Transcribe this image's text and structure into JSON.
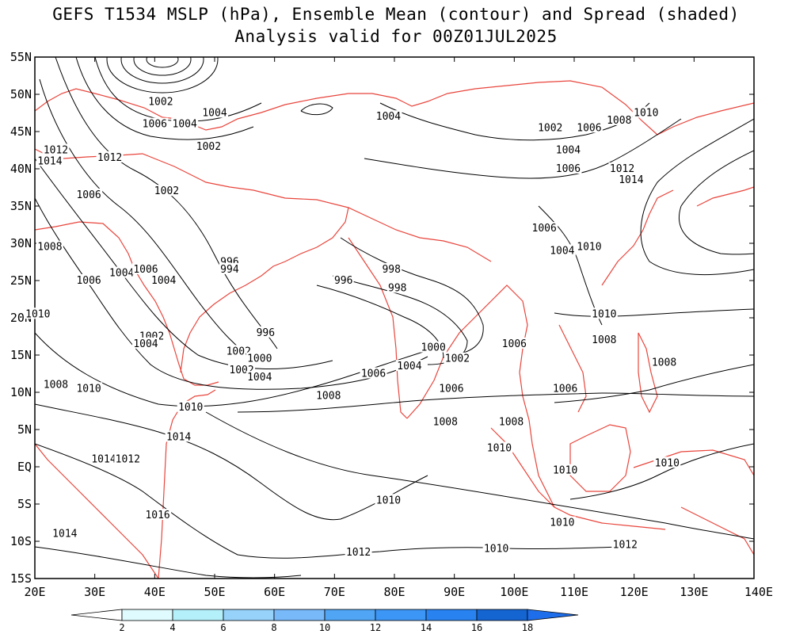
{
  "title": {
    "line1": "GEFS T1534 MSLP (hPa), Ensemble Mean (contour) and Spread (shaded)",
    "line2": "Analysis valid for 00Z01JUL2025"
  },
  "axes": {
    "lon_labels": [
      "20E",
      "30E",
      "40E",
      "50E",
      "60E",
      "70E",
      "80E",
      "90E",
      "100E",
      "110E",
      "120E",
      "130E",
      "140E"
    ],
    "lat_labels": [
      "55N",
      "50N",
      "45N",
      "40N",
      "35N",
      "30N",
      "25N",
      "20N",
      "15N",
      "10N",
      "5N",
      "EQ",
      "5S",
      "10S",
      "15S"
    ],
    "lon_range": [
      20,
      140
    ],
    "lat_range": [
      -15,
      55
    ]
  },
  "colorbar": {
    "ticks": [
      "2",
      "4",
      "6",
      "8",
      "10",
      "12",
      "14",
      "16",
      "18"
    ],
    "colors": [
      "#ffffff",
      "#e0fbfd",
      "#b4f0fa",
      "#96d2fa",
      "#78b9fa",
      "#50a5f5",
      "#3c96f5",
      "#2882f0",
      "#1464d2",
      "#1e6eeb"
    ]
  },
  "colors": {
    "coast": "#e8453c",
    "contour": "#000000"
  },
  "contour_labels": [
    {
      "text": "1002",
      "lon": 41.0,
      "lat": 49.0
    },
    {
      "text": "1006",
      "lon": 40.0,
      "lat": 46.0
    },
    {
      "text": "1004",
      "lon": 45.0,
      "lat": 46.0
    },
    {
      "text": "1004",
      "lon": 50.0,
      "lat": 47.5
    },
    {
      "text": "1002",
      "lon": 49.0,
      "lat": 43.0
    },
    {
      "text": "1012",
      "lon": 23.5,
      "lat": 42.5
    },
    {
      "text": "1014",
      "lon": 22.5,
      "lat": 41.0
    },
    {
      "text": "1012",
      "lon": 32.5,
      "lat": 41.5
    },
    {
      "text": "1006",
      "lon": 29.0,
      "lat": 36.5
    },
    {
      "text": "1002",
      "lon": 42.0,
      "lat": 37.0
    },
    {
      "text": "1008",
      "lon": 22.5,
      "lat": 29.5
    },
    {
      "text": "1004",
      "lon": 34.5,
      "lat": 26.0
    },
    {
      "text": "1006",
      "lon": 29.0,
      "lat": 25.0
    },
    {
      "text": "1006",
      "lon": 38.5,
      "lat": 26.5
    },
    {
      "text": "1004",
      "lon": 41.5,
      "lat": 25.0
    },
    {
      "text": "1010",
      "lon": 20.5,
      "lat": 20.5
    },
    {
      "text": "1002",
      "lon": 39.5,
      "lat": 17.5
    },
    {
      "text": "1004",
      "lon": 38.5,
      "lat": 16.5
    },
    {
      "text": "996",
      "lon": 52.5,
      "lat": 27.5
    },
    {
      "text": "994",
      "lon": 52.5,
      "lat": 26.5
    },
    {
      "text": "996",
      "lon": 58.5,
      "lat": 18.0
    },
    {
      "text": "1002",
      "lon": 54.0,
      "lat": 15.5
    },
    {
      "text": "1000",
      "lon": 57.5,
      "lat": 14.5
    },
    {
      "text": "1002",
      "lon": 54.5,
      "lat": 13.0
    },
    {
      "text": "1004",
      "lon": 57.5,
      "lat": 12.0
    },
    {
      "text": "1008",
      "lon": 23.5,
      "lat": 11.0
    },
    {
      "text": "1010",
      "lon": 29.0,
      "lat": 10.5
    },
    {
      "text": "1010",
      "lon": 46.0,
      "lat": 8.0
    },
    {
      "text": "1014",
      "lon": 44.0,
      "lat": 4.0
    },
    {
      "text": "1014",
      "lon": 31.5,
      "lat": 1.0
    },
    {
      "text": "1012",
      "lon": 35.5,
      "lat": 1.0
    },
    {
      "text": "1016",
      "lon": 40.5,
      "lat": -6.5
    },
    {
      "text": "1014",
      "lon": 25.0,
      "lat": -9.0
    },
    {
      "text": "996",
      "lon": 71.5,
      "lat": 25.0
    },
    {
      "text": "998",
      "lon": 79.5,
      "lat": 26.5
    },
    {
      "text": "998",
      "lon": 80.5,
      "lat": 24.0
    },
    {
      "text": "1000",
      "lon": 86.5,
      "lat": 16.0
    },
    {
      "text": "1002",
      "lon": 90.5,
      "lat": 14.5
    },
    {
      "text": "1006",
      "lon": 76.5,
      "lat": 12.5
    },
    {
      "text": "1004",
      "lon": 82.5,
      "lat": 13.5
    },
    {
      "text": "1008",
      "lon": 69.0,
      "lat": 9.5
    },
    {
      "text": "1006",
      "lon": 89.5,
      "lat": 10.5
    },
    {
      "text": "1008",
      "lon": 88.5,
      "lat": 6.0
    },
    {
      "text": "1010",
      "lon": 79.0,
      "lat": -4.5
    },
    {
      "text": "1012",
      "lon": 74.0,
      "lat": -11.5
    },
    {
      "text": "1010",
      "lon": 97.0,
      "lat": -11.0
    },
    {
      "text": "1004",
      "lon": 79.0,
      "lat": 47.0
    },
    {
      "text": "1002",
      "lon": 106.0,
      "lat": 45.5
    },
    {
      "text": "1006",
      "lon": 112.5,
      "lat": 45.5
    },
    {
      "text": "1008",
      "lon": 117.5,
      "lat": 46.5
    },
    {
      "text": "1010",
      "lon": 122.0,
      "lat": 47.5
    },
    {
      "text": "1004",
      "lon": 109.0,
      "lat": 42.5
    },
    {
      "text": "1006",
      "lon": 109.0,
      "lat": 40.0
    },
    {
      "text": "1012",
      "lon": 118.0,
      "lat": 40.0
    },
    {
      "text": "1014",
      "lon": 119.5,
      "lat": 38.5
    },
    {
      "text": "1006",
      "lon": 105.0,
      "lat": 32.0
    },
    {
      "text": "1004",
      "lon": 108.0,
      "lat": 29.0
    },
    {
      "text": "1010",
      "lon": 112.5,
      "lat": 29.5
    },
    {
      "text": "1010",
      "lon": 115.0,
      "lat": 20.5
    },
    {
      "text": "1008",
      "lon": 115.0,
      "lat": 17.0
    },
    {
      "text": "1008",
      "lon": 125.0,
      "lat": 14.0
    },
    {
      "text": "1006",
      "lon": 100.0,
      "lat": 16.5
    },
    {
      "text": "1006",
      "lon": 108.5,
      "lat": 10.5
    },
    {
      "text": "1008",
      "lon": 99.5,
      "lat": 6.0
    },
    {
      "text": "1010",
      "lon": 97.5,
      "lat": 2.5
    },
    {
      "text": "1010",
      "lon": 108.5,
      "lat": -0.5
    },
    {
      "text": "1010",
      "lon": 125.5,
      "lat": 0.5
    },
    {
      "text": "1010",
      "lon": 108.0,
      "lat": -7.5
    },
    {
      "text": "1012",
      "lon": 118.5,
      "lat": -10.5
    }
  ]
}
